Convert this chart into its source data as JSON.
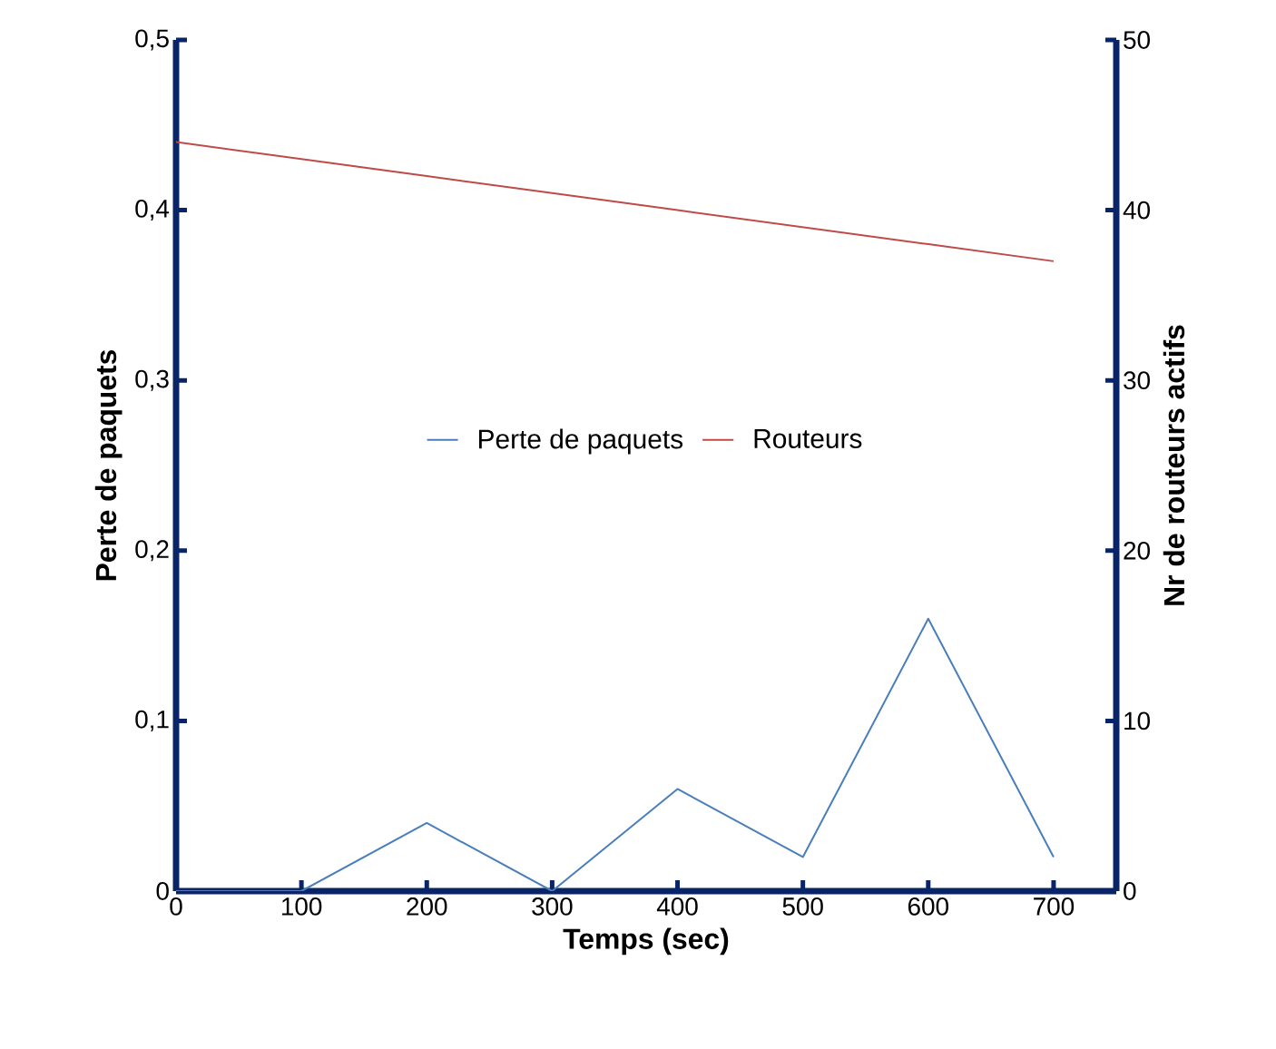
{
  "chart_data": {
    "type": "line",
    "xlabel": "Temps (sec)",
    "ylabel": "Perte de paquets",
    "y2label": "Nr de routeurs actifs",
    "x": [
      0,
      100,
      200,
      300,
      400,
      500,
      600,
      700
    ],
    "series": [
      {
        "name": "Perte de paquets",
        "color": "#4a7ebb",
        "values": [
          0,
          0,
          0.04,
          0,
          0.06,
          0.02,
          0.16,
          0.02
        ]
      },
      {
        "name": "Routeurs",
        "color": "#be4b48",
        "axis": "y2",
        "values": [
          44,
          43,
          42,
          41,
          40,
          39,
          38,
          37
        ]
      }
    ],
    "xlim": [
      0,
      750
    ],
    "xticks": [
      0,
      100,
      200,
      300,
      400,
      500,
      600,
      700
    ],
    "ylim": [
      0,
      0.5
    ],
    "yticks": [
      0,
      {
        "value": 0.1,
        "label": "0,1"
      },
      {
        "value": 0.2,
        "label": "0,2"
      },
      {
        "value": 0.3,
        "label": "0,3"
      },
      {
        "value": 0.4,
        "label": "0,4"
      },
      {
        "value": 0.5,
        "label": "0,5"
      }
    ],
    "y2lim": [
      0,
      50
    ],
    "y2ticks": [
      0,
      10,
      20,
      30,
      40,
      50
    ],
    "legend": "center"
  }
}
